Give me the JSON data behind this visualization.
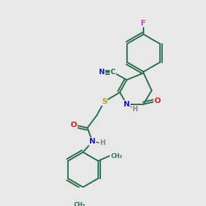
{
  "background_color": "#e8e8e8",
  "bond_color": "#2d6e4e",
  "atom_colors": {
    "F": "#cc44cc",
    "N": "#1a1acc",
    "O": "#cc2222",
    "S": "#aaaa00",
    "C": "#2d6e4e",
    "H": "#888888"
  }
}
